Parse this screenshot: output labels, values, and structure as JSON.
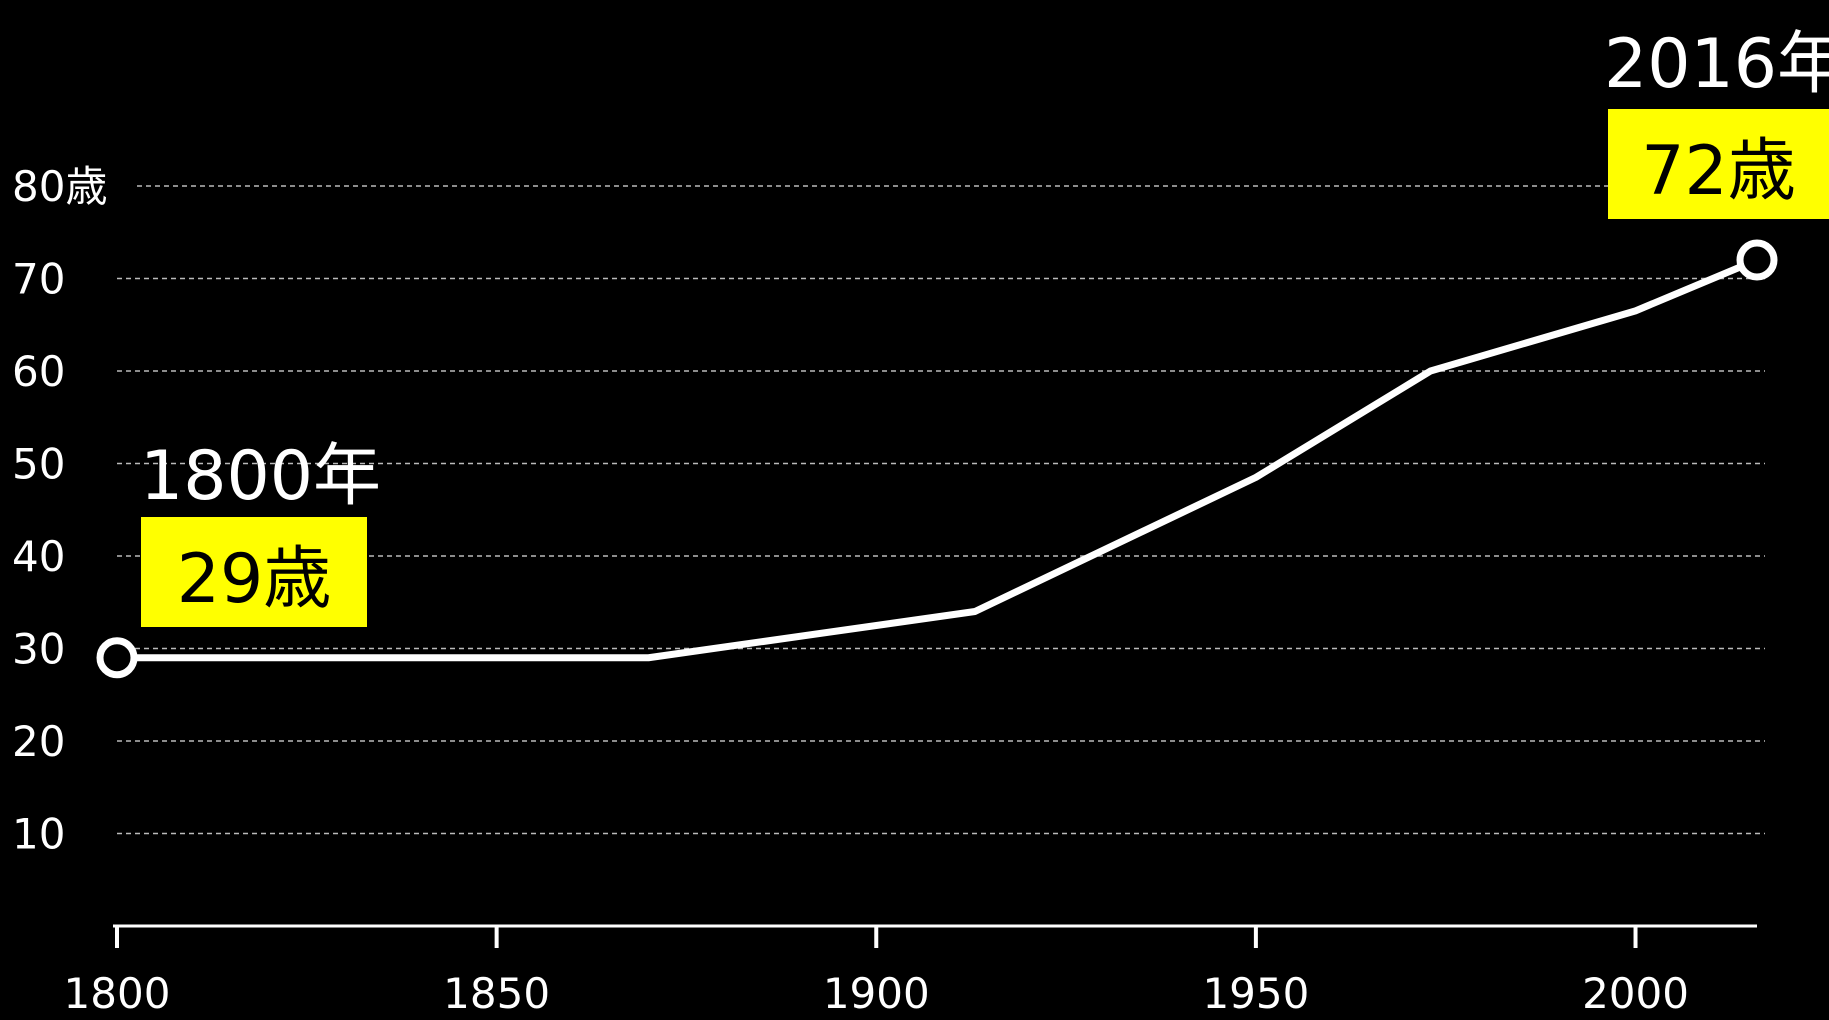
{
  "chart_data": {
    "type": "line",
    "x": [
      1800,
      1870,
      1913,
      1950,
      1973,
      2000,
      2016
    ],
    "y": [
      29,
      29,
      34,
      48.5,
      60,
      66.5,
      72
    ],
    "xlim": [
      1800,
      2016
    ],
    "ylim": [
      0,
      80
    ],
    "yticks": [
      10,
      20,
      30,
      40,
      50,
      60,
      70,
      80
    ],
    "ytick_labels": [
      "10",
      "20",
      "30",
      "40",
      "50",
      "60",
      "70",
      "80歳"
    ],
    "xticks": [
      1800,
      1850,
      1900,
      1950,
      2000
    ],
    "xtick_labels": [
      "1800",
      "1850",
      "1900",
      "1950",
      "2000"
    ],
    "grid": true,
    "grid_style": "dashed",
    "line_color": "#ffffff",
    "background": "#000000",
    "annotations": {
      "start": {
        "year": "1800年",
        "value": "29歳"
      },
      "end": {
        "year": "2016年",
        "value": "72歳"
      }
    },
    "highlight_color": "#ffff00"
  }
}
